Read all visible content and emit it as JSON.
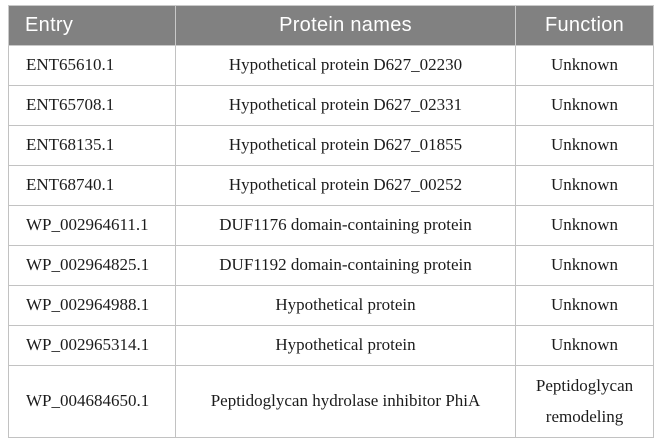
{
  "colors": {
    "header_bg": "#818181",
    "header_text": "#ffffff",
    "border": "#c2c2c2",
    "body_text": "#1b1b1b",
    "page_bg": "#ffffff"
  },
  "table": {
    "columns": [
      {
        "label": "Entry"
      },
      {
        "label": "Protein names"
      },
      {
        "label": "Function"
      }
    ],
    "rows": [
      {
        "entry": "ENT65610.1",
        "protein": "Hypothetical protein D627_02230",
        "function": "Unknown"
      },
      {
        "entry": "ENT65708.1",
        "protein": "Hypothetical protein D627_02331",
        "function": "Unknown"
      },
      {
        "entry": "ENT68135.1",
        "protein": "Hypothetical protein D627_01855",
        "function": "Unknown"
      },
      {
        "entry": "ENT68740.1",
        "protein": "Hypothetical protein D627_00252",
        "function": "Unknown"
      },
      {
        "entry": "WP_002964611.1",
        "protein": "DUF1176 domain-containing protein",
        "function": "Unknown"
      },
      {
        "entry": "WP_002964825.1",
        "protein": "DUF1192 domain-containing protein",
        "function": "Unknown"
      },
      {
        "entry": "WP_002964988.1",
        "protein": "Hypothetical protein",
        "function": "Unknown"
      },
      {
        "entry": "WP_002965314.1",
        "protein": "Hypothetical protein",
        "function": "Unknown"
      },
      {
        "entry": "WP_004684650.1",
        "protein": "Peptidoglycan hydrolase inhibitor PhiA",
        "function": "Peptidoglycan remodeling"
      }
    ]
  }
}
